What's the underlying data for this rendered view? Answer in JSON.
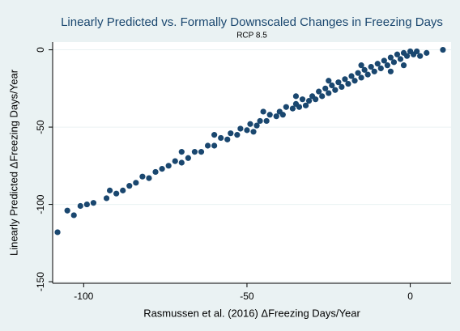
{
  "chart_data": {
    "type": "scatter",
    "title": "Linearly Predicted vs. Formally Downscaled Changes in Freezing Days",
    "subtitle": "RCP 8.5",
    "x_label": "Rasmussen et al. (2016) ΔFreezing Days/Year",
    "y_label": "Linearly Predicted ΔFreezing Days/Year",
    "xlim": [
      -109.5,
      12.5
    ],
    "ylim": [
      -151,
      5
    ],
    "xticks": [
      -100,
      -50,
      0
    ],
    "yticks": [
      0,
      -50,
      -100,
      -150
    ],
    "grid": true,
    "color": "#1a476f",
    "x": [
      -108,
      -105,
      -103,
      -101,
      -99,
      -97,
      -93,
      -92,
      -90,
      -88,
      -86,
      -84,
      -82,
      -80,
      -78,
      -76,
      -74,
      -72,
      -70,
      -70,
      -68,
      -66,
      -64,
      -62,
      -60,
      -58,
      -56,
      -55,
      -53,
      -52,
      -50,
      -49,
      -47,
      -46,
      -44,
      -43,
      -41,
      -40,
      -39,
      -38,
      -36,
      -35,
      -34,
      -33,
      -31,
      -30,
      -29,
      -28,
      -27,
      -26,
      -25,
      -24,
      -23,
      -22,
      -21,
      -20,
      -19,
      -18,
      -17,
      -16,
      -15,
      -14,
      -13,
      -12,
      -11,
      -10,
      -9,
      -8,
      -7,
      -6,
      -5,
      -4,
      -3,
      -2,
      -1,
      0,
      1,
      2,
      3,
      5,
      10,
      -60,
      -45,
      -32,
      -15,
      -6,
      -2,
      -25,
      -35,
      -48
    ],
    "values": [
      -118,
      -104,
      -107,
      -101,
      -100,
      -99,
      -96,
      -91,
      -93,
      -91,
      -88,
      -86,
      -82,
      -83,
      -79,
      -77,
      -75,
      -72,
      -73,
      -66,
      -70,
      -66,
      -66,
      -62,
      -62,
      -57,
      -58,
      -54,
      -55,
      -51,
      -52,
      -48,
      -49,
      -46,
      -46,
      -42,
      -43,
      -40,
      -42,
      -37,
      -38,
      -35,
      -37,
      -32,
      -33,
      -30,
      -32,
      -27,
      -30,
      -25,
      -28,
      -23,
      -26,
      -21,
      -24,
      -19,
      -22,
      -17,
      -20,
      -15,
      -18,
      -13,
      -16,
      -11,
      -14,
      -9,
      -12,
      -7,
      -10,
      -5,
      -8,
      -3,
      -6,
      -2,
      -4,
      -1,
      -3,
      -1,
      -4,
      -2,
      0,
      -55,
      -40,
      -36,
      -10,
      -14,
      -10,
      -20,
      -30,
      -53
    ]
  }
}
